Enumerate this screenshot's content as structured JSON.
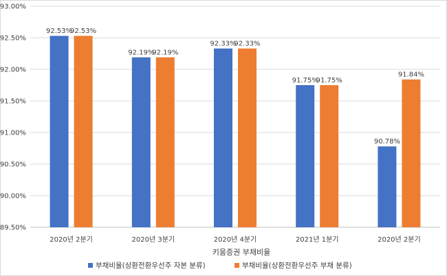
{
  "chart_data": {
    "type": "bar",
    "title": "",
    "xlabel": "키움증권 부채비율",
    "ylabel": "",
    "ylim": [
      89.5,
      93.0
    ],
    "yticks": [
      "89.50%",
      "90.00%",
      "90.50%",
      "91.00%",
      "91.50%",
      "92.00%",
      "92.50%",
      "93.00%"
    ],
    "ytick_values": [
      89.5,
      90.0,
      90.5,
      91.0,
      91.5,
      92.0,
      92.5,
      93.0
    ],
    "grid": true,
    "legend_position": "bottom",
    "categories": [
      "2020년 2분기",
      "2020년 3분기",
      "2020년 4분기",
      "2021년 1분기",
      "2020년 2분기"
    ],
    "series": [
      {
        "name": "부채비율(상환전환우선주 자본 분류)",
        "color": "#4472c4",
        "values": [
          92.53,
          92.19,
          92.33,
          91.75,
          90.78
        ],
        "labels": [
          "92.53%",
          "92.19%",
          "92.33%",
          "91.75%",
          "90.78%"
        ]
      },
      {
        "name": "부채비율(상환전환우선주 부채 분류)",
        "color": "#ed7d31",
        "values": [
          92.53,
          92.19,
          92.33,
          91.75,
          91.84
        ],
        "labels": [
          "92.53%",
          "92.19%",
          "92.33%",
          "91.75%",
          "91.84%"
        ]
      }
    ]
  }
}
